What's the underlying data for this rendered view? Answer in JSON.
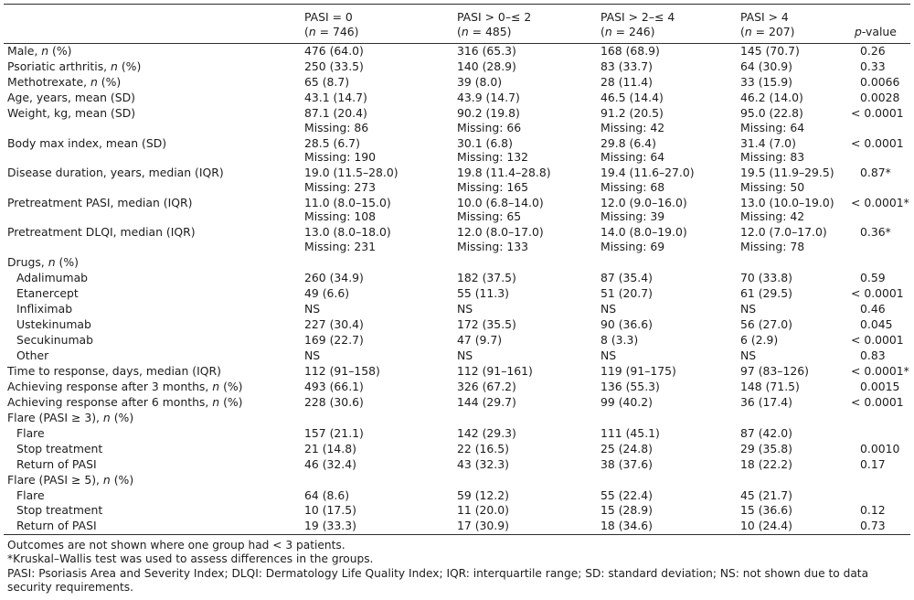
{
  "table": {
    "corner_header": "",
    "columns": [
      {
        "line1": "PASI = 0",
        "line2": "(n = 746)"
      },
      {
        "line1": "PASI > 0–≤ 2",
        "line2": "(n = 485)"
      },
      {
        "line1": "PASI > 2–≤ 4",
        "line2": "(n = 246)"
      },
      {
        "line1": "PASI > 4",
        "line2": "(n = 207)"
      }
    ],
    "p_header": "p-value",
    "rows": [
      {
        "label": "Male, n (%)",
        "indent": false,
        "cells": [
          "476 (64.0)",
          "316 (65.3)",
          "168 (68.9)",
          "145 (70.7)"
        ],
        "p": "0.26"
      },
      {
        "label": "Psoriatic arthritis, n (%)",
        "indent": false,
        "cells": [
          "250 (33.5)",
          "140 (28.9)",
          "83 (33.7)",
          "64 (30.9)"
        ],
        "p": "0.33"
      },
      {
        "label": "Methotrexate, n (%)",
        "indent": false,
        "cells": [
          "65 (8.7)",
          "39 (8.0)",
          "28 (11.4)",
          "33 (15.9)"
        ],
        "p": "0.0066"
      },
      {
        "label": "Age, years, mean (SD)",
        "indent": false,
        "cells": [
          "43.1 (14.7)",
          "43.9 (14.7)",
          "46.5 (14.4)",
          "46.2 (14.0)"
        ],
        "p": "0.0028"
      },
      {
        "label": "Weight, kg, mean (SD)",
        "indent": false,
        "cells": [
          "87.1 (20.4)",
          "90.2 (19.8)",
          "91.2 (20.5)",
          "95.0 (22.8)"
        ],
        "missing": [
          "Missing: 86",
          "Missing: 66",
          "Missing: 42",
          "Missing: 64"
        ],
        "p": "< 0.0001"
      },
      {
        "label": "Body max index, mean (SD)",
        "indent": false,
        "cells": [
          "28.5 (6.7)",
          "30.1 (6.8)",
          "29.8 (6.4)",
          "31.4 (7.0)"
        ],
        "missing": [
          "Missing: 190",
          "Missing: 132",
          "Missing: 64",
          "Missing: 83"
        ],
        "p": "< 0.0001"
      },
      {
        "label": "Disease duration, years, median (IQR)",
        "indent": false,
        "cells": [
          "19.0 (11.5–28.0)",
          "19.8 (11.4–28.8)",
          "19.4 (11.6–27.0)",
          "19.5 (11.9–29.5)"
        ],
        "missing": [
          "Missing: 273",
          "Missing: 165",
          "Missing: 68",
          "Missing: 50"
        ],
        "p": "0.87*"
      },
      {
        "label": "Pretreatment PASI, median (IQR)",
        "indent": false,
        "cells": [
          "11.0 (8.0–15.0)",
          "10.0 (6.8–14.0)",
          "12.0 (9.0–16.0)",
          "13.0 (10.0–19.0)"
        ],
        "missing": [
          "Missing: 108",
          "Missing: 65",
          "Missing: 39",
          "Missing: 42"
        ],
        "p": "< 0.0001*"
      },
      {
        "label": "Pretreatment DLQI, median (IQR)",
        "indent": false,
        "cells": [
          "13.0 (8.0–18.0)",
          "12.0 (8.0–17.0)",
          "14.0 (8.0–19.0)",
          "12.0 (7.0–17.0)"
        ],
        "missing": [
          "Missing: 231",
          "Missing: 133",
          "Missing: 69",
          "Missing: 78"
        ],
        "p": "0.36*"
      },
      {
        "label": "Drugs, n (%)",
        "indent": false,
        "section": true
      },
      {
        "label": "Adalimumab",
        "indent": true,
        "cells": [
          "260 (34.9)",
          "182 (37.5)",
          "87 (35.4)",
          "70 (33.8)"
        ],
        "p": "0.59"
      },
      {
        "label": "Etanercept",
        "indent": true,
        "cells": [
          "49 (6.6)",
          "55 (11.3)",
          "51 (20.7)",
          "61 (29.5)"
        ],
        "p": "< 0.0001"
      },
      {
        "label": "Infliximab",
        "indent": true,
        "cells": [
          "NS",
          "NS",
          "NS",
          "NS"
        ],
        "p": "0.46"
      },
      {
        "label": "Ustekinumab",
        "indent": true,
        "cells": [
          "227 (30.4)",
          "172 (35.5)",
          "90 (36.6)",
          "56 (27.0)"
        ],
        "p": "0.045"
      },
      {
        "label": "Secukinumab",
        "indent": true,
        "cells": [
          "169 (22.7)",
          "47 (9.7)",
          "8 (3.3)",
          "6 (2.9)"
        ],
        "p": "< 0.0001"
      },
      {
        "label": "Other",
        "indent": true,
        "cells": [
          "NS",
          "NS",
          "NS",
          "NS"
        ],
        "p": "0.83"
      },
      {
        "label": "Time to response, days, median (IQR)",
        "indent": false,
        "cells": [
          "112 (91–158)",
          "112 (91–161)",
          "119 (91–175)",
          "97 (83–126)"
        ],
        "p": "< 0.0001*"
      },
      {
        "label": "Achieving response after 3 months, n (%)",
        "indent": false,
        "cells": [
          "493 (66.1)",
          "326 (67.2)",
          "136 (55.3)",
          "148 (71.5)"
        ],
        "p": "0.0015"
      },
      {
        "label": "Achieving response after 6 months, n (%)",
        "indent": false,
        "cells": [
          "228 (30.6)",
          "144 (29.7)",
          "99 (40.2)",
          "36 (17.4)"
        ],
        "p": "< 0.0001"
      },
      {
        "label": "Flare (PASI ≥ 3), n (%)",
        "indent": false,
        "section": true
      },
      {
        "label": "Flare",
        "indent": true,
        "cells": [
          "157 (21.1)",
          "142 (29.3)",
          "111 (45.1)",
          "87 (42.0)"
        ],
        "p": ""
      },
      {
        "label": "Stop treatment",
        "indent": true,
        "cells": [
          "21 (14.8)",
          "22 (16.5)",
          "25 (24.8)",
          "29 (35.8)"
        ],
        "p": "0.0010"
      },
      {
        "label": "Return of PASI",
        "indent": true,
        "cells": [
          "46 (32.4)",
          "43 (32.3)",
          "38 (37.6)",
          "18 (22.2)"
        ],
        "p": "0.17"
      },
      {
        "label": "Flare (PASI ≥ 5), n (%)",
        "indent": false,
        "section": true
      },
      {
        "label": "Flare",
        "indent": true,
        "cells": [
          "64 (8.6)",
          "59 (12.2)",
          "55 (22.4)",
          "45 (21.7)"
        ],
        "p": ""
      },
      {
        "label": "Stop treatment",
        "indent": true,
        "cells": [
          "10 (17.5)",
          "11 (20.0)",
          "15 (28.9)",
          "15 (36.6)"
        ],
        "p": "0.12"
      },
      {
        "label": "Return of PASI",
        "indent": true,
        "cells": [
          "19 (33.3)",
          "17 (30.9)",
          "18 (34.6)",
          "10 (24.4)"
        ],
        "p": "0.73"
      }
    ]
  },
  "footnotes": [
    "Outcomes are not shown where one group had < 3 patients.",
    "*Kruskal–Wallis test was used to assess differences in the groups.",
    "PASI: Psoriasis Area and Severity Index; DLQI: Dermatology Life Quality Index; IQR: interquartile range; SD: standard deviation; NS: not shown due to data security requirements."
  ],
  "colors": {
    "text": "#1c1c1c",
    "rule": "#2e2e2e",
    "background": "#ffffff"
  }
}
